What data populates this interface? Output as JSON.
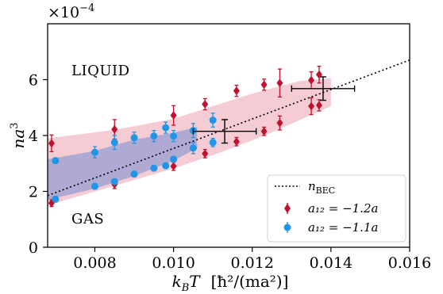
{
  "chart_data": {
    "type": "scatter",
    "xlabel": "k_B T   [ħ²/(ma²)]",
    "ylabel": "na³",
    "y_multiplier": "×10⁻⁴",
    "xlim": [
      0.0068,
      0.016
    ],
    "ylim": [
      0,
      8
    ],
    "x_ticks": [
      "0.008",
      "0.010",
      "0.012",
      "0.014",
      "0.016"
    ],
    "y_ticks": [
      "0",
      "2",
      "4",
      "6"
    ],
    "grid": false,
    "legend_position": "lower-right",
    "annotations": [
      "LIQUID",
      "GAS"
    ],
    "colors": {
      "red": "#c0112f",
      "blue": "#1f96e6",
      "red_band": "#e88e9d",
      "blue_band": "#6a88d3"
    },
    "series": [
      {
        "name": "n_BEC",
        "kind": "dotted-line",
        "x": [
          0.0068,
          0.016
        ],
        "y": [
          1.85,
          6.7
        ]
      },
      {
        "name": "a₁₂ = −1.2a",
        "kind": "markers",
        "marker": "diamond",
        "color": "#c0112f",
        "points": [
          {
            "x": 0.0069,
            "y": 3.72,
            "err": 0.3
          },
          {
            "x": 0.0069,
            "y": 1.58,
            "err": 0.12
          },
          {
            "x": 0.0085,
            "y": 4.22,
            "err": 0.35
          },
          {
            "x": 0.0085,
            "y": 2.25,
            "err": 0.15
          },
          {
            "x": 0.01,
            "y": 4.72,
            "err": 0.35
          },
          {
            "x": 0.01,
            "y": 2.9,
            "err": 0.15
          },
          {
            "x": 0.0108,
            "y": 5.12,
            "err": 0.2
          },
          {
            "x": 0.0108,
            "y": 3.35,
            "err": 0.15
          },
          {
            "x": 0.0116,
            "y": 5.6,
            "err": 0.2
          },
          {
            "x": 0.0116,
            "y": 3.78,
            "err": 0.15
          },
          {
            "x": 0.0123,
            "y": 5.82,
            "err": 0.2
          },
          {
            "x": 0.0123,
            "y": 4.15,
            "err": 0.15
          },
          {
            "x": 0.0127,
            "y": 5.88,
            "err": 0.5
          },
          {
            "x": 0.0127,
            "y": 4.45,
            "err": 0.25
          },
          {
            "x": 0.0135,
            "y": 5.98,
            "err": 0.3
          },
          {
            "x": 0.0135,
            "y": 5.05,
            "err": 0.3
          },
          {
            "x": 0.0137,
            "y": 6.18,
            "err": 0.3
          },
          {
            "x": 0.0137,
            "y": 5.08,
            "err": 0.2
          }
        ]
      },
      {
        "name": "a₁₂ = −1.1a",
        "kind": "markers",
        "marker": "circle",
        "color": "#1f96e6",
        "points": [
          {
            "x": 0.007,
            "y": 3.1,
            "err": 0.1
          },
          {
            "x": 0.007,
            "y": 1.72,
            "err": 0.1
          },
          {
            "x": 0.008,
            "y": 3.4,
            "err": 0.2
          },
          {
            "x": 0.008,
            "y": 2.18,
            "err": 0.1
          },
          {
            "x": 0.0085,
            "y": 3.75,
            "err": 0.25
          },
          {
            "x": 0.0085,
            "y": 2.35,
            "err": 0.1
          },
          {
            "x": 0.009,
            "y": 3.92,
            "err": 0.2
          },
          {
            "x": 0.009,
            "y": 2.62,
            "err": 0.1
          },
          {
            "x": 0.0095,
            "y": 3.98,
            "err": 0.2
          },
          {
            "x": 0.0095,
            "y": 2.83,
            "err": 0.1
          },
          {
            "x": 0.0098,
            "y": 4.28,
            "err": 0.2
          },
          {
            "x": 0.0098,
            "y": 2.92,
            "err": 0.1
          },
          {
            "x": 0.01,
            "y": 3.98,
            "err": 0.2
          },
          {
            "x": 0.01,
            "y": 3.15,
            "err": 0.1
          },
          {
            "x": 0.0105,
            "y": 4.18,
            "err": 0.25
          },
          {
            "x": 0.0105,
            "y": 3.55,
            "err": 0.2
          },
          {
            "x": 0.011,
            "y": 4.55,
            "err": 0.25
          },
          {
            "x": 0.011,
            "y": 3.75,
            "err": 0.15
          }
        ]
      },
      {
        "name": "reference-points",
        "kind": "crosshair",
        "color": "#000000",
        "points": [
          {
            "x": 0.0113,
            "y": 4.15,
            "xerr": 0.0008,
            "yerr": 0.42
          },
          {
            "x": 0.0138,
            "y": 5.68,
            "xerr": 0.0008,
            "yerr": 0.42
          }
        ]
      }
    ],
    "bands": [
      {
        "name": "red-band",
        "upper": [
          [
            0.0068,
            3.9
          ],
          [
            0.0085,
            4.2
          ],
          [
            0.01,
            4.6
          ],
          [
            0.011,
            5.05
          ],
          [
            0.012,
            5.5
          ],
          [
            0.0132,
            5.95
          ],
          [
            0.014,
            6.05
          ]
        ],
        "lower": [
          [
            0.014,
            5.05
          ],
          [
            0.0132,
            4.55
          ],
          [
            0.0124,
            4.05
          ],
          [
            0.0112,
            3.4
          ],
          [
            0.01,
            2.82
          ],
          [
            0.0085,
            2.2
          ],
          [
            0.0068,
            1.5
          ]
        ]
      },
      {
        "name": "blue-band",
        "upper": [
          [
            0.0068,
            3.15
          ],
          [
            0.008,
            3.45
          ],
          [
            0.009,
            3.85
          ],
          [
            0.01,
            4.1
          ],
          [
            0.0106,
            4.3
          ]
        ],
        "lower": [
          [
            0.0106,
            3.55
          ],
          [
            0.01,
            3.1
          ],
          [
            0.009,
            2.55
          ],
          [
            0.008,
            2.1
          ],
          [
            0.0068,
            1.7
          ]
        ]
      }
    ]
  },
  "labels": {
    "multiplier_base": "×10",
    "multiplier_exp": "−4",
    "ylabel_main": "na",
    "ylabel_exp": "3",
    "xlabel_kb": "k",
    "xlabel_b": "B",
    "xlabel_t": "T",
    "xlabel_units": "[ħ²/(ma²)]",
    "liquid": "LIQUID",
    "gas": "GAS",
    "legend_nbec_main": "n",
    "legend_nbec_sub": "BEC",
    "legend_red": "a₁₂ = −1.2a",
    "legend_blue": "a₁₂ = −1.1a"
  }
}
